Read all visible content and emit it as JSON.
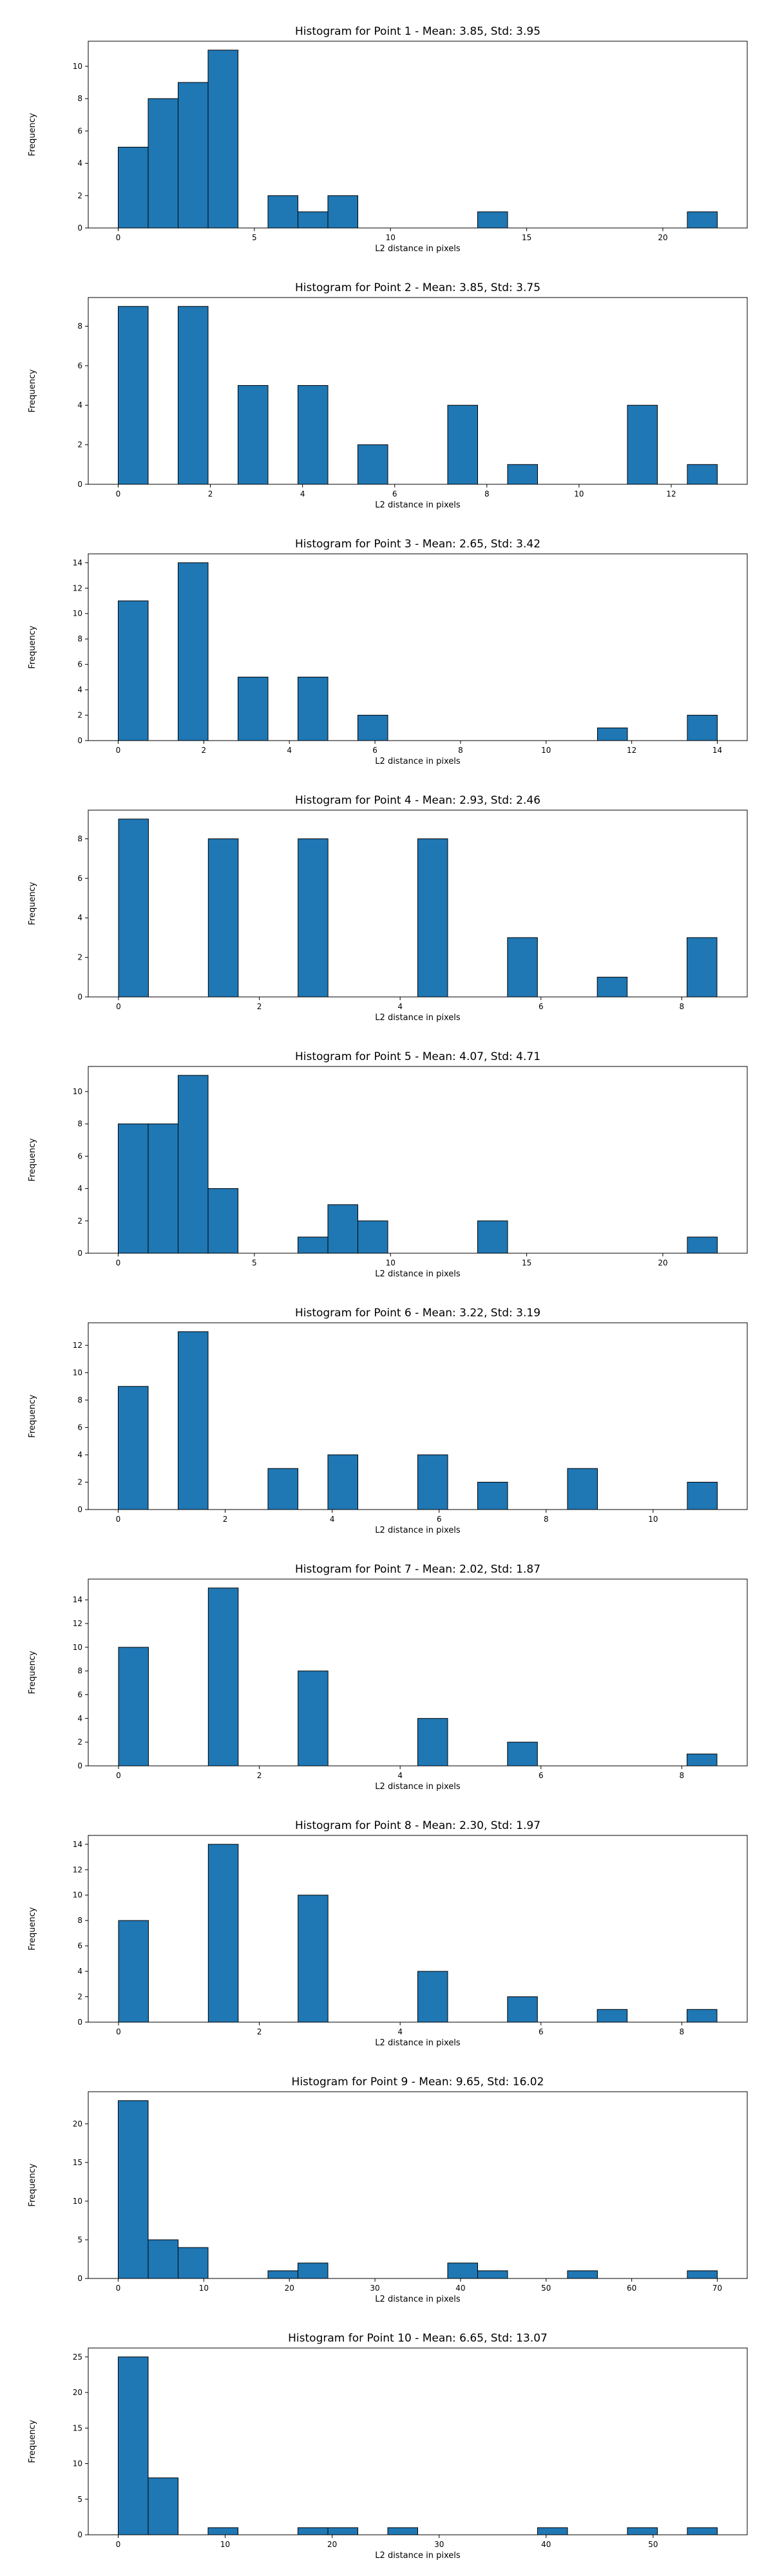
{
  "chart_data": [
    {
      "type": "bar",
      "title": "Histogram for Point 1 - Mean: 3.85, Std: 3.95",
      "xlabel": "L2 distance in pixels",
      "ylabel": "Frequency",
      "xlim": [
        -1.1,
        23.1
      ],
      "ylim": [
        0,
        11.55
      ],
      "xticks": [
        0,
        5,
        10,
        15,
        20
      ],
      "yticks": [
        0,
        2,
        4,
        6,
        8,
        10
      ],
      "bin_edges": [
        0,
        1.1,
        2.2,
        3.3,
        4.4,
        5.5,
        6.6,
        7.7,
        8.8,
        9.9,
        11.0,
        12.1,
        13.2,
        14.3,
        15.4,
        16.5,
        17.6,
        18.7,
        19.8,
        20.9,
        22.0
      ],
      "values": [
        5,
        8,
        9,
        11,
        0,
        2,
        1,
        2,
        0,
        0,
        0,
        0,
        1,
        0,
        0,
        0,
        0,
        0,
        0,
        1
      ]
    },
    {
      "type": "bar",
      "title": "Histogram for Point 2 - Mean: 3.85, Std: 3.75",
      "xlabel": "L2 distance in pixels",
      "ylabel": "Frequency",
      "xlim": [
        -0.65,
        13.65
      ],
      "ylim": [
        0,
        9.45
      ],
      "xticks": [
        0,
        2,
        4,
        6,
        8,
        10,
        12
      ],
      "yticks": [
        0,
        2,
        4,
        6,
        8
      ],
      "bin_edges": [
        0,
        0.65,
        1.3,
        1.95,
        2.6,
        3.25,
        3.9,
        4.55,
        5.2,
        5.85,
        6.5,
        7.15,
        7.8,
        8.45,
        9.1,
        9.75,
        10.4,
        11.05,
        11.7,
        12.35,
        13.0
      ],
      "values": [
        9,
        0,
        9,
        0,
        5,
        0,
        5,
        0,
        2,
        0,
        0,
        4,
        0,
        1,
        0,
        0,
        0,
        4,
        0,
        1
      ]
    },
    {
      "type": "bar",
      "title": "Histogram for Point 3 - Mean: 2.65, Std: 3.42",
      "xlabel": "L2 distance in pixels",
      "ylabel": "Frequency",
      "xlim": [
        -0.7,
        14.7
      ],
      "ylim": [
        0,
        14.7
      ],
      "xticks": [
        0,
        2,
        4,
        6,
        8,
        10,
        12,
        14
      ],
      "yticks": [
        0,
        2,
        4,
        6,
        8,
        10,
        12,
        14
      ],
      "bin_edges": [
        0,
        0.7,
        1.4,
        2.1,
        2.8,
        3.5,
        4.2,
        4.9,
        5.6,
        6.3,
        7.0,
        7.7,
        8.4,
        9.1,
        9.8,
        10.5,
        11.2,
        11.9,
        12.6,
        13.3,
        14.0
      ],
      "values": [
        11,
        0,
        14,
        0,
        5,
        0,
        5,
        0,
        2,
        0,
        0,
        0,
        0,
        0,
        0,
        0,
        1,
        0,
        0,
        2
      ]
    },
    {
      "type": "bar",
      "title": "Histogram for Point 4 - Mean: 2.93, Std: 2.46",
      "xlabel": "L2 distance in pixels",
      "ylabel": "Frequency",
      "xlim": [
        -0.43,
        8.93
      ],
      "ylim": [
        0,
        9.45
      ],
      "xticks": [
        0,
        2,
        4,
        6,
        8
      ],
      "yticks": [
        0,
        2,
        4,
        6,
        8
      ],
      "bin_edges": [
        0,
        0.425,
        0.85,
        1.275,
        1.7,
        2.125,
        2.55,
        2.975,
        3.4,
        3.825,
        4.25,
        4.675,
        5.1,
        5.525,
        5.95,
        6.375,
        6.8,
        7.225,
        7.65,
        8.075,
        8.5
      ],
      "values": [
        9,
        0,
        0,
        8,
        0,
        0,
        8,
        0,
        0,
        0,
        8,
        0,
        0,
        3,
        0,
        0,
        1,
        0,
        0,
        3
      ]
    },
    {
      "type": "bar",
      "title": "Histogram for Point 5 - Mean: 4.07, Std: 4.71",
      "xlabel": "L2 distance in pixels",
      "ylabel": "Frequency",
      "xlim": [
        -1.1,
        23.1
      ],
      "ylim": [
        0,
        11.55
      ],
      "xticks": [
        0,
        5,
        10,
        15,
        20
      ],
      "yticks": [
        0,
        2,
        4,
        6,
        8,
        10
      ],
      "bin_edges": [
        0,
        1.1,
        2.2,
        3.3,
        4.4,
        5.5,
        6.6,
        7.7,
        8.8,
        9.9,
        11.0,
        12.1,
        13.2,
        14.3,
        15.4,
        16.5,
        17.6,
        18.7,
        19.8,
        20.9,
        22.0
      ],
      "values": [
        8,
        8,
        11,
        4,
        0,
        0,
        1,
        3,
        2,
        0,
        0,
        0,
        2,
        0,
        0,
        0,
        0,
        0,
        0,
        1
      ]
    },
    {
      "type": "bar",
      "title": "Histogram for Point 6 - Mean: 3.22, Std: 3.19",
      "xlabel": "L2 distance in pixels",
      "ylabel": "Frequency",
      "xlim": [
        -0.56,
        11.76
      ],
      "ylim": [
        0,
        13.65
      ],
      "xticks": [
        0,
        2,
        4,
        6,
        8,
        10
      ],
      "yticks": [
        0,
        2,
        4,
        6,
        8,
        10,
        12
      ],
      "bin_edges": [
        0,
        0.56,
        1.12,
        1.68,
        2.24,
        2.8,
        3.36,
        3.92,
        4.48,
        5.04,
        5.6,
        6.16,
        6.72,
        7.28,
        7.84,
        8.4,
        8.96,
        9.52,
        10.08,
        10.64,
        11.2
      ],
      "values": [
        9,
        0,
        13,
        0,
        0,
        3,
        0,
        4,
        0,
        0,
        4,
        0,
        2,
        0,
        0,
        3,
        0,
        0,
        0,
        2
      ]
    },
    {
      "type": "bar",
      "title": "Histogram for Point 7 - Mean: 2.02, Std: 1.87",
      "xlabel": "L2 distance in pixels",
      "ylabel": "Frequency",
      "xlim": [
        -0.43,
        8.93
      ],
      "ylim": [
        0,
        15.75
      ],
      "xticks": [
        0,
        2,
        4,
        6,
        8
      ],
      "yticks": [
        0,
        2,
        4,
        6,
        8,
        10,
        12,
        14
      ],
      "bin_edges": [
        0,
        0.425,
        0.85,
        1.275,
        1.7,
        2.125,
        2.55,
        2.975,
        3.4,
        3.825,
        4.25,
        4.675,
        5.1,
        5.525,
        5.95,
        6.375,
        6.8,
        7.225,
        7.65,
        8.075,
        8.5
      ],
      "values": [
        10,
        0,
        0,
        15,
        0,
        0,
        8,
        0,
        0,
        0,
        4,
        0,
        0,
        2,
        0,
        0,
        0,
        0,
        0,
        1
      ]
    },
    {
      "type": "bar",
      "title": "Histogram for Point 8 - Mean: 2.30, Std: 1.97",
      "xlabel": "L2 distance in pixels",
      "ylabel": "Frequency",
      "xlim": [
        -0.43,
        8.93
      ],
      "ylim": [
        0,
        14.7
      ],
      "xticks": [
        0,
        2,
        4,
        6,
        8
      ],
      "yticks": [
        0,
        2,
        4,
        6,
        8,
        10,
        12,
        14
      ],
      "bin_edges": [
        0,
        0.425,
        0.85,
        1.275,
        1.7,
        2.125,
        2.55,
        2.975,
        3.4,
        3.825,
        4.25,
        4.675,
        5.1,
        5.525,
        5.95,
        6.375,
        6.8,
        7.225,
        7.65,
        8.075,
        8.5
      ],
      "values": [
        8,
        0,
        0,
        14,
        0,
        0,
        10,
        0,
        0,
        0,
        4,
        0,
        0,
        2,
        0,
        0,
        1,
        0,
        0,
        1
      ]
    },
    {
      "type": "bar",
      "title": "Histogram for Point 9 - Mean: 9.65, Std: 16.02",
      "xlabel": "L2 distance in pixels",
      "ylabel": "Frequency",
      "xlim": [
        -3.5,
        73.5
      ],
      "ylim": [
        0,
        24.15
      ],
      "xticks": [
        0,
        10,
        20,
        30,
        40,
        50,
        60,
        70
      ],
      "yticks": [
        0,
        5,
        10,
        15,
        20
      ],
      "bin_edges": [
        0,
        3.5,
        7,
        10.5,
        14,
        17.5,
        21,
        24.5,
        28,
        31.5,
        35,
        38.5,
        42,
        45.5,
        49,
        52.5,
        56,
        59.5,
        63,
        66.5,
        70
      ],
      "values": [
        23,
        5,
        4,
        0,
        0,
        1,
        2,
        0,
        0,
        0,
        0,
        2,
        1,
        0,
        0,
        1,
        0,
        0,
        0,
        1
      ]
    },
    {
      "type": "bar",
      "title": "Histogram for Point 10 - Mean: 6.65, Std: 13.07",
      "xlabel": "L2 distance in pixels",
      "ylabel": "Frequency",
      "xlim": [
        -2.8,
        58.8
      ],
      "ylim": [
        0,
        26.25
      ],
      "xticks": [
        0,
        10,
        20,
        30,
        40,
        50
      ],
      "yticks": [
        0,
        5,
        10,
        15,
        20,
        25
      ],
      "bin_edges": [
        0,
        2.8,
        5.6,
        8.4,
        11.2,
        14.0,
        16.8,
        19.6,
        22.4,
        25.2,
        28.0,
        30.8,
        33.6,
        36.4,
        39.2,
        42.0,
        44.8,
        47.6,
        50.4,
        53.2,
        56.0
      ],
      "values": [
        25,
        8,
        0,
        1,
        0,
        0,
        1,
        1,
        0,
        1,
        0,
        0,
        0,
        0,
        1,
        0,
        0,
        1,
        0,
        1
      ]
    }
  ]
}
